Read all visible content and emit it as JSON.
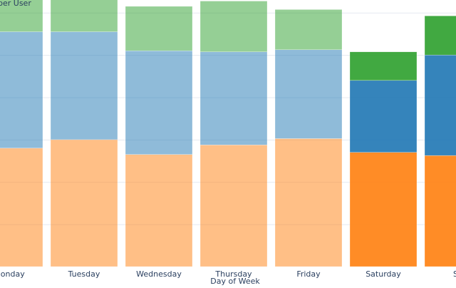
{
  "chart_data": {
    "type": "bar",
    "stacked": true,
    "ylabel": "per User",
    "xlabel": "Day of Week",
    "grid": true,
    "categories": [
      "Monday",
      "Tuesday",
      "Wednesday",
      "Thursday",
      "Friday",
      "Saturday",
      "Sunday"
    ],
    "category_labels": [
      "Monday",
      "Tuesday",
      "Wednesday",
      "Thursday",
      "Friday",
      "Saturday",
      "Su"
    ],
    "ylim": [
      0,
      12.6
    ],
    "highlighted_categories": [
      "Saturday",
      "Sunday"
    ],
    "series": [
      {
        "name": "orange",
        "color": "#ff7f0e",
        "values": [
          5.6,
          6.0,
          5.3,
          5.75,
          6.05,
          5.4,
          5.25
        ]
      },
      {
        "name": "blue",
        "color": "#1f77b4",
        "values": [
          5.5,
          5.1,
          4.9,
          4.4,
          4.2,
          3.4,
          4.75
        ]
      },
      {
        "name": "green",
        "color": "#2ca02c",
        "values": [
          2.0,
          2.0,
          2.1,
          2.4,
          1.9,
          1.35,
          1.85
        ]
      }
    ]
  }
}
